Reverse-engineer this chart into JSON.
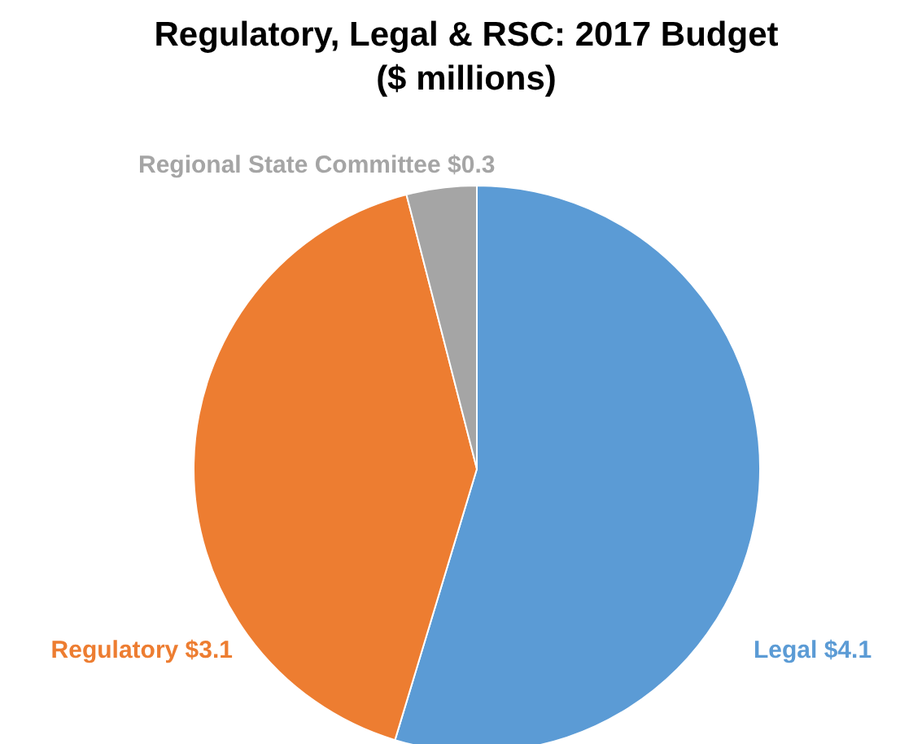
{
  "chart_data": {
    "type": "pie",
    "title": "Regulatory, Legal & RSC: 2017 Budget",
    "subtitle": "($ millions)",
    "categories": [
      "Legal",
      "Regulatory",
      "Regional State Committee"
    ],
    "values": [
      4.1,
      3.1,
      0.3
    ],
    "value_labels": [
      "$4.1",
      "$3.1",
      "$0.3"
    ],
    "colors": [
      "#5b9bd5",
      "#ed7d31",
      "#a5a5a5"
    ],
    "legend": false
  }
}
